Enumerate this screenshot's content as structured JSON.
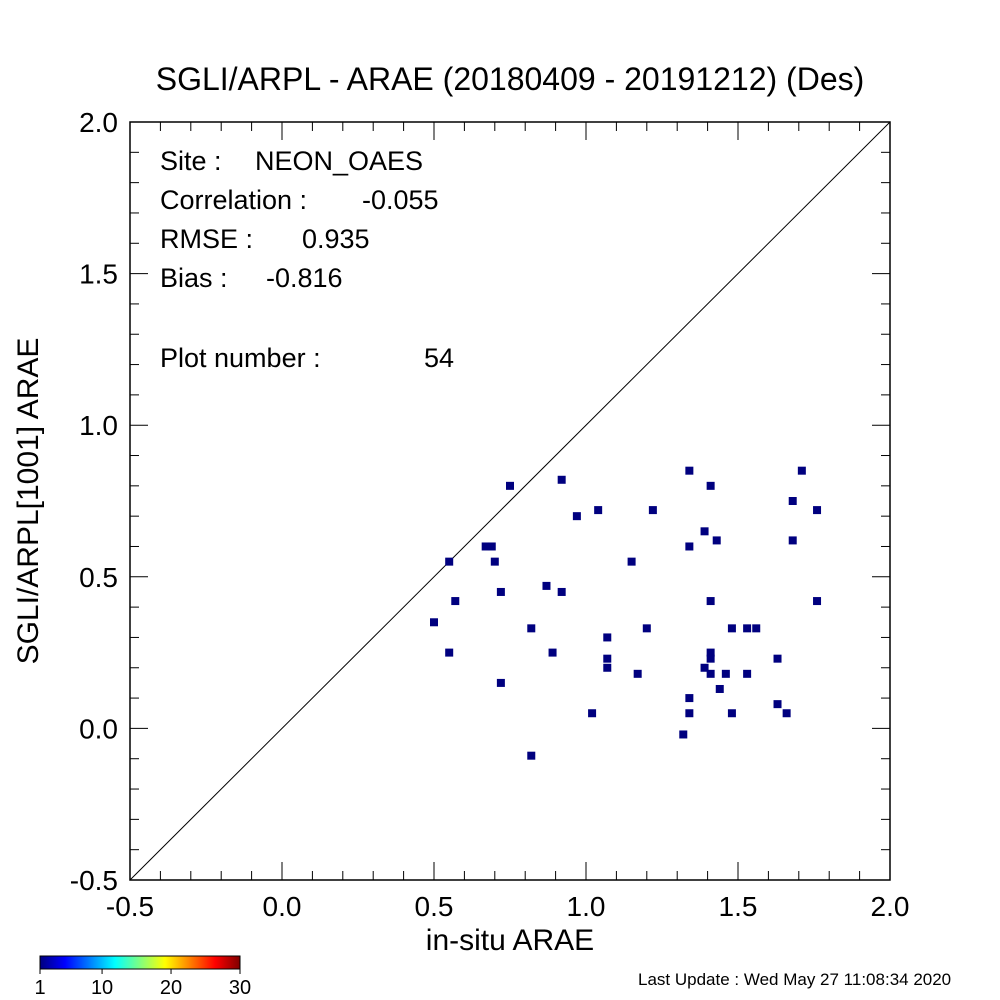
{
  "chart_data": {
    "type": "scatter",
    "title": "SGLI/ARPL - ARAE (20180409 - 20191212) (Des)",
    "xlabel": "in-situ ARAE",
    "ylabel": "SGLI/ARPL[1001]    ARAE",
    "xlim": [
      -0.5,
      2.0
    ],
    "ylim": [
      -0.5,
      2.0
    ],
    "xticks": [
      "-0.5",
      "0.0",
      "0.5",
      "1.0",
      "1.5",
      "2.0"
    ],
    "yticks": [
      "-0.5",
      "0.0",
      "0.5",
      "1.0",
      "1.5",
      "2.0"
    ],
    "grid": false,
    "one_to_one_line": true,
    "point_color": "#00007f",
    "stats": [
      {
        "label": "Site :",
        "value": "NEON_OAES"
      },
      {
        "label": "Correlation :",
        "value": "-0.055"
      },
      {
        "label": "RMSE :",
        "value": "0.935"
      },
      {
        "label": "Bias :",
        "value": "-0.816"
      },
      {
        "label": "Plot number :",
        "value": "54"
      }
    ],
    "points": [
      [
        0.5,
        0.35
      ],
      [
        0.55,
        0.55
      ],
      [
        0.55,
        0.25
      ],
      [
        0.57,
        0.42
      ],
      [
        0.67,
        0.6
      ],
      [
        0.69,
        0.6
      ],
      [
        0.7,
        0.55
      ],
      [
        0.72,
        0.45
      ],
      [
        0.72,
        0.15
      ],
      [
        0.75,
        0.8
      ],
      [
        0.82,
        0.33
      ],
      [
        0.82,
        -0.09
      ],
      [
        0.87,
        0.47
      ],
      [
        0.89,
        0.25
      ],
      [
        0.92,
        0.82
      ],
      [
        0.92,
        0.45
      ],
      [
        0.97,
        0.7
      ],
      [
        1.02,
        0.05
      ],
      [
        1.04,
        0.72
      ],
      [
        1.07,
        0.3
      ],
      [
        1.07,
        0.23
      ],
      [
        1.07,
        0.2
      ],
      [
        1.15,
        0.55
      ],
      [
        1.17,
        0.18
      ],
      [
        1.2,
        0.33
      ],
      [
        1.22,
        0.72
      ],
      [
        1.32,
        -0.02
      ],
      [
        1.34,
        0.85
      ],
      [
        1.34,
        0.6
      ],
      [
        1.34,
        0.1
      ],
      [
        1.34,
        0.05
      ],
      [
        1.39,
        0.65
      ],
      [
        1.39,
        0.2
      ],
      [
        1.41,
        0.8
      ],
      [
        1.41,
        0.42
      ],
      [
        1.41,
        0.25
      ],
      [
        1.41,
        0.23
      ],
      [
        1.41,
        0.18
      ],
      [
        1.43,
        0.62
      ],
      [
        1.44,
        0.13
      ],
      [
        1.46,
        0.18
      ],
      [
        1.48,
        0.33
      ],
      [
        1.48,
        0.05
      ],
      [
        1.53,
        0.33
      ],
      [
        1.53,
        0.18
      ],
      [
        1.56,
        0.33
      ],
      [
        1.63,
        0.23
      ],
      [
        1.63,
        0.08
      ],
      [
        1.66,
        0.05
      ],
      [
        1.68,
        0.75
      ],
      [
        1.68,
        0.62
      ],
      [
        1.71,
        0.85
      ],
      [
        1.76,
        0.72
      ],
      [
        1.76,
        0.42
      ]
    ],
    "colorbar": {
      "ticks": [
        "1",
        "10",
        "20",
        "30"
      ],
      "colors": [
        "#00007f",
        "#0000ff",
        "#0080ff",
        "#00ffff",
        "#80ff80",
        "#ffff00",
        "#ff8000",
        "#ff0000",
        "#7f0000"
      ]
    }
  },
  "footer": {
    "last_update": "Last Update : Wed May 27 11:08:34 2020"
  }
}
